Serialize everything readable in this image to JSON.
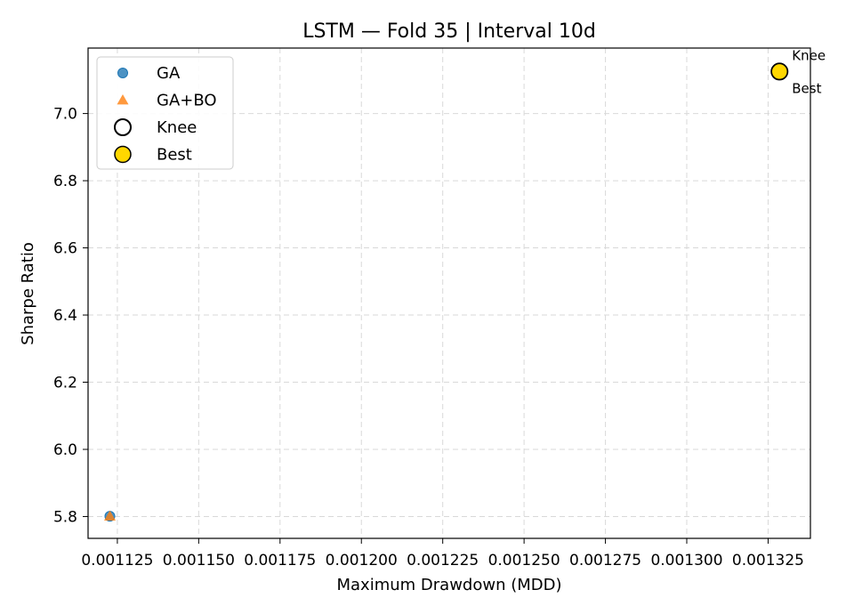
{
  "chart_data": {
    "type": "scatter",
    "title": "LSTM — Fold 35 | Interval 10d",
    "xlabel": "Maximum Drawdown (MDD)",
    "ylabel": "Sharpe Ratio",
    "xlim": [
      0.001116,
      0.001338
    ],
    "ylim": [
      5.735,
      7.195
    ],
    "x_ticks": [
      0.001125,
      0.00115,
      0.001175,
      0.0012,
      0.001225,
      0.00125,
      0.001275,
      0.0013,
      0.001325
    ],
    "x_tick_labels": [
      "0.001125",
      "0.001150",
      "0.001175",
      "0.001200",
      "0.001225",
      "0.001250",
      "0.001275",
      "0.001300",
      "0.001325"
    ],
    "y_ticks": [
      5.8,
      6.0,
      6.2,
      6.4,
      6.6,
      6.8,
      7.0
    ],
    "y_tick_labels": [
      "5.8",
      "6.0",
      "6.2",
      "6.4",
      "6.6",
      "6.8",
      "7.0"
    ],
    "grid": true,
    "legend_position": "top-left",
    "series": [
      {
        "name": "GA",
        "marker": "circle",
        "color": "#1f77b4",
        "points": [
          {
            "x": 0.0011227,
            "y": 5.801
          }
        ]
      },
      {
        "name": "GA+BO",
        "marker": "triangle",
        "color": "#ff7f0e",
        "points": [
          {
            "x": 0.0011227,
            "y": 5.801
          }
        ]
      },
      {
        "name": "Knee",
        "marker": "hollow-circle",
        "color": "#000000",
        "points": [
          {
            "x": 0.0013285,
            "y": 7.125
          }
        ]
      },
      {
        "name": "Best",
        "marker": "filled-circle",
        "color": "#ffd700",
        "points": [
          {
            "x": 0.0013285,
            "y": 7.125
          }
        ]
      }
    ],
    "annotations": [
      {
        "text": "Knee",
        "x": 0.0013285,
        "y": 7.125,
        "position": "above"
      },
      {
        "text": "Best",
        "x": 0.0013285,
        "y": 7.125,
        "position": "below"
      }
    ]
  }
}
